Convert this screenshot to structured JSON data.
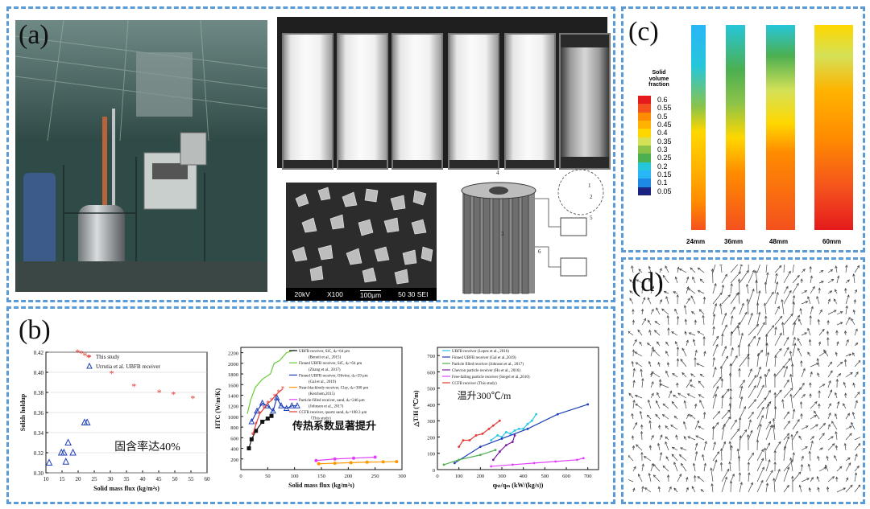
{
  "labels": {
    "a": "(a)",
    "b": "(b)",
    "c": "(c)",
    "d": "(d)"
  },
  "panel_a": {
    "sem_scale": [
      "20kV",
      "X100",
      "100µm",
      "50 30 SEI"
    ],
    "schematic_numbers": [
      "1",
      "2",
      "3",
      "4",
      "5",
      "6"
    ]
  },
  "panel_c": {
    "colorbar_title": [
      "Solid",
      "volume",
      "fraction"
    ],
    "colorbar_ticks": [
      "0.6",
      "0.55",
      "0.5",
      "0.45",
      "0.4",
      "0.35",
      "0.3",
      "0.25",
      "0.2",
      "0.15",
      "0.1",
      "0.05"
    ],
    "colorbar_colors": [
      "#e41a1c",
      "#f4511e",
      "#ff8c00",
      "#ffb300",
      "#ffd700",
      "#d4e157",
      "#8bc34a",
      "#4caf50",
      "#26c6da",
      "#29b6f6",
      "#1e88e5",
      "#1a237e"
    ],
    "contour_labels": [
      "24mm",
      "36mm",
      "48mm",
      "60mm"
    ]
  },
  "chart_data": [
    {
      "type": "scatter",
      "xlabel": "Solid mass flux (kg/m²s)",
      "ylabel": "Solids holdup",
      "xlim": [
        10,
        60
      ],
      "ylim": [
        0.3,
        0.42
      ],
      "xticks": [
        "10",
        "15",
        "20",
        "25",
        "30",
        "35",
        "40",
        "45",
        "50",
        "55",
        "60"
      ],
      "yticks": [
        "0.30",
        "0.32",
        "0.34",
        "0.36",
        "0.38",
        "0.40",
        "0.42"
      ],
      "annotation": "固含率达40%",
      "legend": [
        "This study",
        "Urrutia et al. UBFB receiver"
      ],
      "series": [
        {
          "name": "This study",
          "color": "#e53935",
          "x": [
            19.8,
            21.0,
            22.1,
            23.2,
            30.4,
            37.3,
            45.2,
            49.6,
            55.6
          ],
          "y": [
            0.42,
            0.419,
            0.417,
            0.415,
            0.399,
            0.386,
            0.38,
            0.378,
            0.374
          ]
        },
        {
          "name": "Urrutia et al. UBFB receiver",
          "color": "#1e3fb8",
          "x": [
            11.0,
            14.8,
            15.6,
            16.2,
            16.9,
            18.4,
            22.0,
            22.8
          ],
          "y": [
            0.31,
            0.32,
            0.32,
            0.311,
            0.33,
            0.32,
            0.35,
            0.35
          ]
        }
      ]
    },
    {
      "type": "line",
      "xlabel": "Solid mass flux (kg/m²s)",
      "ylabel": "HTC (W/m²K)",
      "xlim": [
        0,
        300
      ],
      "ylim": [
        0,
        2300
      ],
      "xticks": [
        "0",
        "50",
        "100",
        "150",
        "200",
        "250",
        "300"
      ],
      "yticks": [
        "200",
        "400",
        "600",
        "800",
        "1000",
        "1200",
        "1400",
        "1600",
        "1800",
        "2000",
        "2200"
      ],
      "annotation": "传热系数显著提升",
      "legend_lines": [
        "UBFB receiver, SiC, dₚ=64 μm",
        "(Benoit et al., 2015)",
        "Finned UBFB receiver, SiC, dₚ=64 μm",
        "(Zhang et al., 2017)",
        "Finned UBFB receiver, Olivine, dₚ=59 μm",
        "(Gal et al., 2019)",
        "Near-blackbody receiver, Clay, dₚ=300 μm",
        "(Ketchem,2015)",
        "Particle-filled receiver, sand, dₚ=246 μm",
        "(Johnson et al., 2017)",
        "CCFB receiver, quartz sand, dₚ=198.3 μm",
        "（This study)"
      ],
      "series": [
        {
          "name": "UBFB receiver, SiC, dₚ=64 μm",
          "color": "#111111",
          "marker": "square",
          "x": [
            15,
            20,
            28,
            40,
            50,
            57
          ],
          "y": [
            400,
            570,
            730,
            900,
            960,
            1010
          ]
        },
        {
          "name": "Finned UBFB receiver, SiC, dₚ=64 μm",
          "color": "#66cc33",
          "marker": "none",
          "x": [
            12,
            18,
            27,
            40,
            55,
            62,
            72,
            85,
            100
          ],
          "y": [
            1050,
            1300,
            1550,
            1700,
            1800,
            2000,
            2050,
            2200,
            2250
          ]
        },
        {
          "name": "Finned UBFB receiver, Olivine, dₚ=59 μm",
          "color": "#1e3fb8",
          "marker": "triangle",
          "x": [
            20,
            30,
            40,
            50,
            60,
            67,
            75,
            85,
            95,
            105
          ],
          "y": [
            900,
            1100,
            1250,
            1200,
            1100,
            1350,
            1200,
            1150,
            1200,
            1200
          ]
        },
        {
          "name": "Near-blackbody receiver, Clay, dₚ=300 μm",
          "color": "#ff9800",
          "marker": "circle",
          "x": [
            145,
            175,
            205,
            235,
            265,
            290
          ],
          "y": [
            110,
            120,
            130,
            140,
            145,
            150
          ]
        },
        {
          "name": "Particle-filled receiver, sand, dₚ=246 μm",
          "color": "#e040fb",
          "marker": "circle",
          "x": [
            140,
            175,
            210,
            250
          ],
          "y": [
            170,
            200,
            215,
            235
          ]
        },
        {
          "name": "CCFB receiver, quartz sand, dₚ=198.3 μm",
          "color": "#e53935",
          "marker": "star",
          "x": [
            22,
            28,
            35,
            43,
            50,
            57,
            63,
            70,
            78
          ],
          "y": [
            650,
            850,
            1050,
            1150,
            1250,
            1300,
            1380,
            1450,
            1520
          ]
        }
      ]
    },
    {
      "type": "line",
      "xlabel": "qₕₜ/qₘ (kW/(kg/s))",
      "ylabel": "△T/H (℃/m)",
      "xlim": [
        0,
        750
      ],
      "ylim": [
        0,
        750
      ],
      "xticks": [
        "0",
        "100",
        "200",
        "300",
        "400",
        "500",
        "600",
        "700"
      ],
      "yticks": [
        "0",
        "100",
        "200",
        "300",
        "400",
        "500",
        "600",
        "700"
      ],
      "annotation": "温升300℃/m",
      "legend": [
        "UBFB receiver (Lopez et al., 2016)",
        "Finned UBFB receiver (Gal et al.,2019)",
        "Particle filled receiver (Johnson et al., 2017)",
        "Chevron particle receiver (Ho et al., 2016)",
        "Free-falling particle receiver (Siegel et al.,2010)",
        "CCFB receiver (This study)"
      ],
      "series": [
        {
          "name": "UBFB receiver (Lopez et al., 2016)",
          "color": "#29c5e6",
          "x": [
            250,
            280,
            300,
            320,
            340,
            360,
            380,
            400,
            420,
            440,
            460
          ],
          "y": [
            180,
            210,
            200,
            230,
            220,
            240,
            250,
            250,
            280,
            300,
            340
          ]
        },
        {
          "name": "Finned UBFB receiver (Gal et al.,2019)",
          "color": "#1e3fb8",
          "x": [
            80,
            200,
            300,
            420,
            560,
            700
          ],
          "y": [
            40,
            140,
            190,
            250,
            340,
            400
          ]
        },
        {
          "name": "Particle filled receiver (Johnson et al., 2017)",
          "color": "#4caf50",
          "x": [
            30,
            100,
            200,
            270
          ],
          "y": [
            30,
            60,
            90,
            120
          ]
        },
        {
          "name": "Chevron particle receiver (Ho et al., 2016)",
          "color": "#7b1fa2",
          "x": [
            260,
            290,
            320,
            350,
            360
          ],
          "y": [
            60,
            110,
            150,
            170,
            210
          ]
        },
        {
          "name": "Free-falling particle receiver (Siegel et al.,2010)",
          "color": "#e040fb",
          "x": [
            250,
            350,
            450,
            550,
            650,
            680
          ],
          "y": [
            20,
            30,
            40,
            50,
            60,
            70
          ]
        },
        {
          "name": "CCFB receiver (This study)",
          "color": "#e53935",
          "x": [
            100,
            120,
            150,
            180,
            210,
            240,
            260,
            290
          ],
          "y": [
            140,
            180,
            180,
            210,
            220,
            250,
            270,
            300
          ]
        }
      ]
    }
  ]
}
